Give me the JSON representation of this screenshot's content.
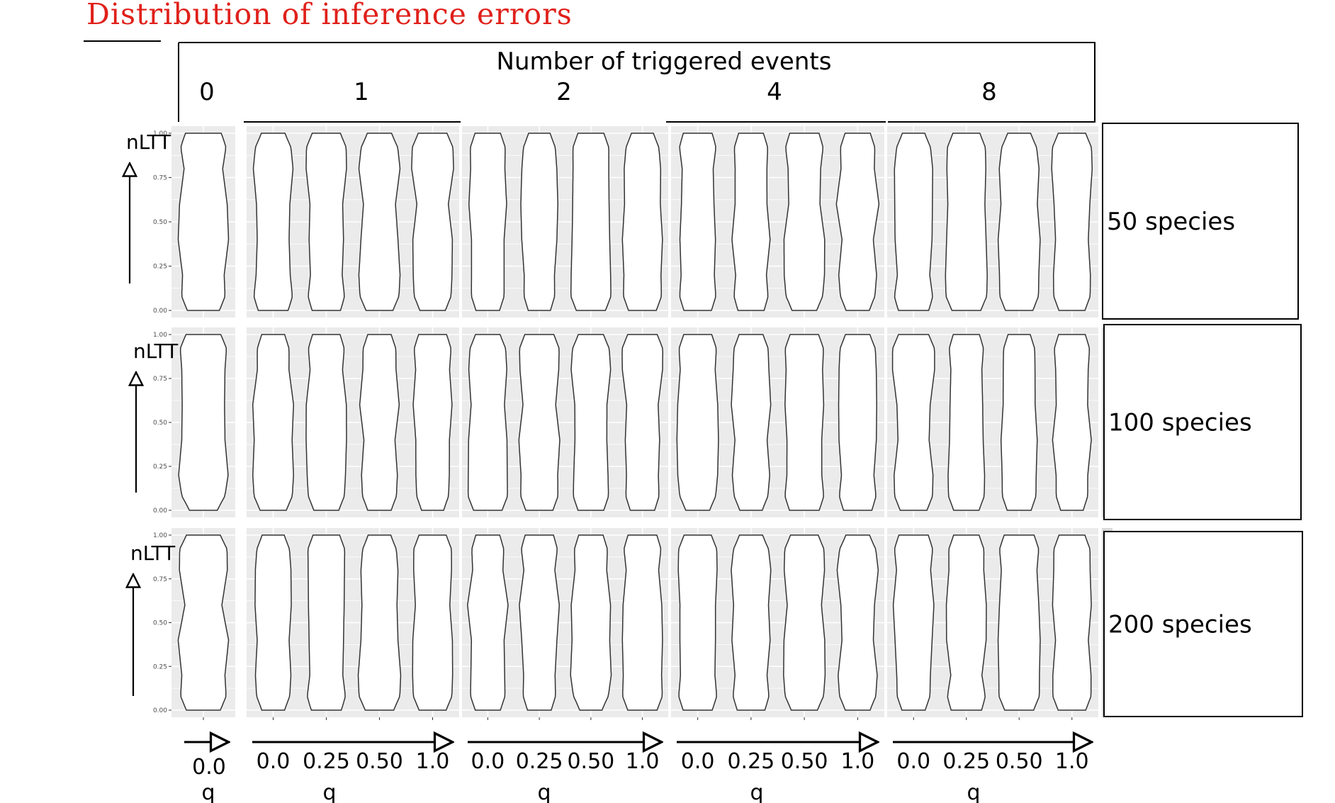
{
  "title": "Distribution of inference errors",
  "column_header": "Number of triggered events",
  "y_axis_label": "nLTT",
  "x_axis_label": "q",
  "colors": {
    "title": "#e0201a",
    "panel_background": "#ebebeb",
    "grid": "#ffffff",
    "violin_fill": "#ffffff",
    "violin_stroke": "#333333",
    "strip": "#d9d9d9"
  },
  "chart_data": {
    "type": "violin",
    "facet_columns": [
      "0",
      "1",
      "2",
      "4",
      "8"
    ],
    "facet_rows": [
      "50 species",
      "100 species",
      "200 species"
    ],
    "ylim": [
      0,
      1
    ],
    "y_ticks": [
      "0.00",
      "0.25",
      "0.50",
      "0.75",
      "1.00"
    ],
    "x_ticks": {
      "0": [
        "0.0"
      ],
      "1": [
        "0.0",
        "0.25",
        "0.50",
        "1.0"
      ],
      "2": [
        "0.0",
        "0.25",
        "0.50",
        "1.0"
      ],
      "4": [
        "0.0",
        "0.25",
        "0.50",
        "1.0"
      ],
      "8": [
        "0.0",
        "0.25",
        "0.50",
        "1.0"
      ]
    },
    "violin_range": [
      0,
      1
    ],
    "grid": true,
    "legend": "none"
  }
}
